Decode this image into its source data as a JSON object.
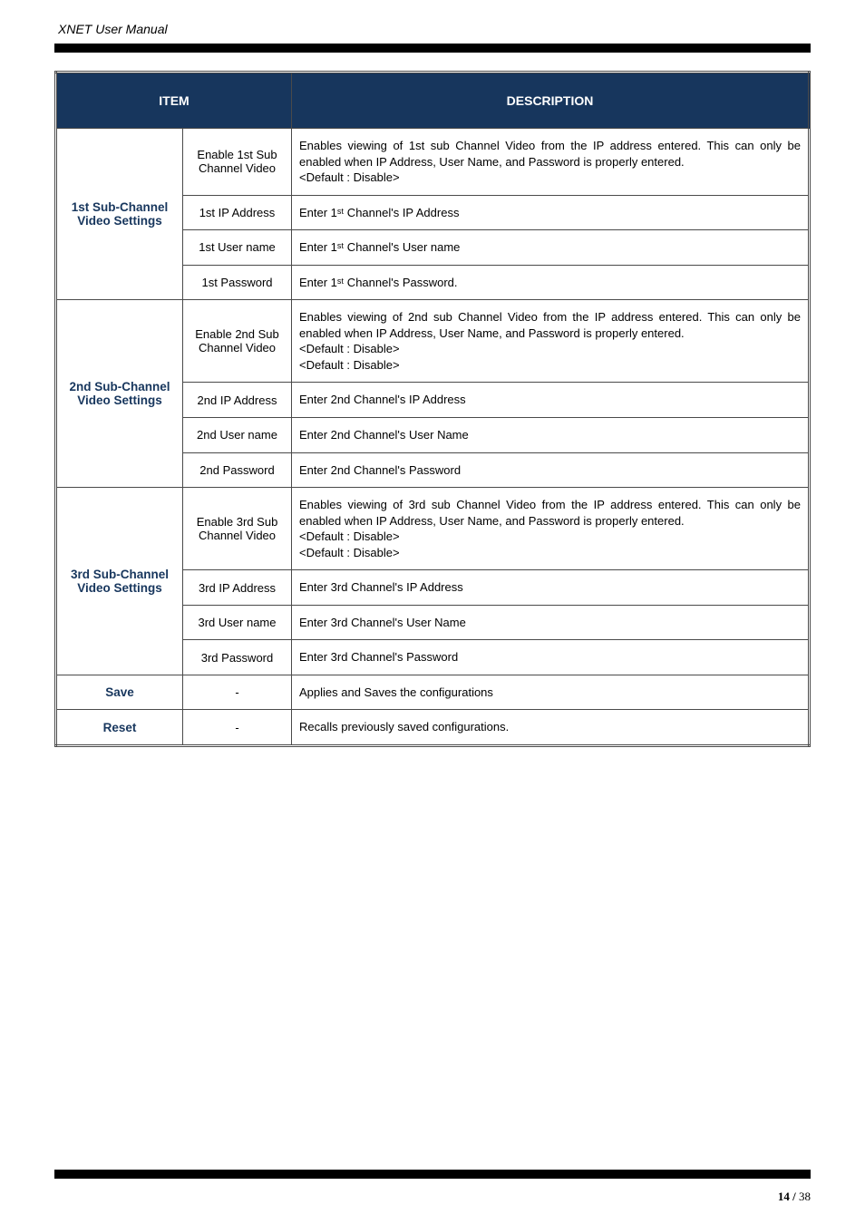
{
  "doc_title": "XNET User Manual",
  "page_number_bold": "14 /",
  "page_number_total": " 38",
  "colors": {
    "header_bg": "#17365d",
    "header_fg": "#ffffff",
    "item_fg": "#17365d",
    "border": "#4a4a4a",
    "black_bar": "#000000"
  },
  "header_item": "ITEM",
  "header_desc": "DESCRIPTION",
  "groups": [
    {
      "item": "1st Sub-Channel Video Settings",
      "rows": [
        {
          "sub": "Enable 1st Sub Channel Video",
          "desc": "Enables viewing of 1st sub Channel Video from the IP address entered. This can only be enabled when IP Address, User Name, and Password is properly entered.\n<Default : Disable>"
        },
        {
          "sub": "1st IP Address",
          "desc": "Enter 1ˢᵗ Channel's IP Address"
        },
        {
          "sub": "1st User name",
          "desc": "Enter 1ˢᵗ Channel's User name"
        },
        {
          "sub": "1st Password",
          "desc": "Enter 1ˢᵗ Channel's Password."
        }
      ]
    },
    {
      "item": "2nd Sub-Channel Video Settings",
      "rows": [
        {
          "sub": "Enable 2nd Sub Channel Video",
          "desc": "Enables viewing of 2nd sub Channel Video from the IP address entered. This can only be enabled when IP Address, User Name, and Password is properly entered.\n<Default : Disable>\n<Default : Disable>"
        },
        {
          "sub": "2nd IP Address",
          "desc": "Enter 2nd Channel's IP Address"
        },
        {
          "sub": "2nd User name",
          "desc": "Enter 2nd Channel's User Name"
        },
        {
          "sub": "2nd Password",
          "desc": "Enter 2nd Channel's Password"
        }
      ]
    },
    {
      "item": "3rd Sub-Channel Video Settings",
      "rows": [
        {
          "sub": "Enable 3rd Sub Channel Video",
          "desc": "Enables viewing of 3rd sub Channel Video from the IP address entered.  This can only be enabled when IP Address, User Name, and Password is properly entered.\n<Default : Disable>\n<Default : Disable>"
        },
        {
          "sub": "3rd IP Address",
          "desc": "Enter 3rd Channel's IP Address"
        },
        {
          "sub": "3rd User name",
          "desc": "Enter 3rd Channel's User Name"
        },
        {
          "sub": "3rd Password",
          "desc": "Enter 3rd Channel's Password"
        }
      ]
    }
  ],
  "single_rows": [
    {
      "item": "Save",
      "sub": "-",
      "desc": "Applies and Saves the configurations"
    },
    {
      "item": "Reset",
      "sub": "-",
      "desc": "Recalls previously saved configurations."
    }
  ]
}
